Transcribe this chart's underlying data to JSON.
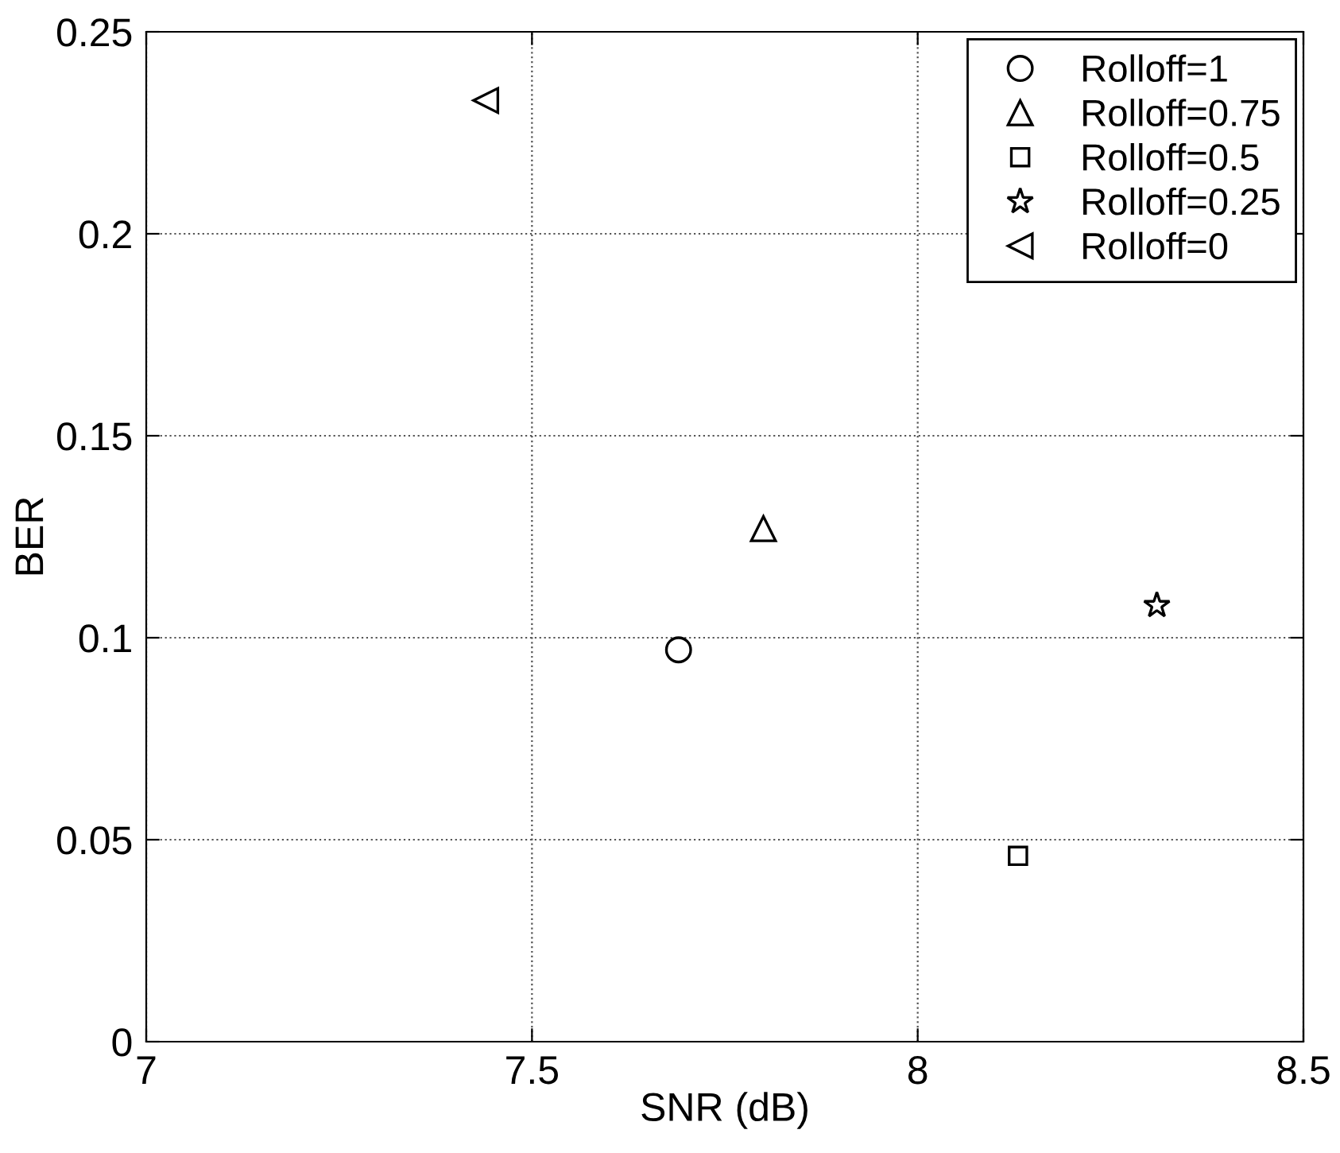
{
  "chart_data": {
    "type": "scatter",
    "xlabel": "SNR (dB)",
    "ylabel": "BER",
    "xlim": [
      7,
      8.5
    ],
    "xticks": [
      7,
      7.5,
      8,
      8.5
    ],
    "ylim": [
      0,
      0.25
    ],
    "yticks": [
      0,
      0.05,
      0.1,
      0.15,
      0.2,
      0.25
    ],
    "grid": true,
    "legend": "top right",
    "series": [
      {
        "name": "Rolloff=1",
        "color": "#000000",
        "marker": "circle",
        "x": [
          7.69
        ],
        "values": [
          0.097
        ]
      },
      {
        "name": "Rolloff=0.75",
        "color": "#000000",
        "marker": "triangle",
        "x": [
          7.8
        ],
        "values": [
          0.127
        ]
      },
      {
        "name": "Rolloff=0.5",
        "color": "#000000",
        "marker": "square",
        "x": [
          8.13
        ],
        "values": [
          0.046
        ]
      },
      {
        "name": "Rolloff=0.25",
        "color": "#000000",
        "marker": "star",
        "x": [
          8.31
        ],
        "values": [
          0.108
        ]
      },
      {
        "name": "Rolloff=0",
        "color": "#000000",
        "marker": "triangle-left",
        "x": [
          7.44
        ],
        "values": [
          0.233
        ]
      }
    ]
  }
}
